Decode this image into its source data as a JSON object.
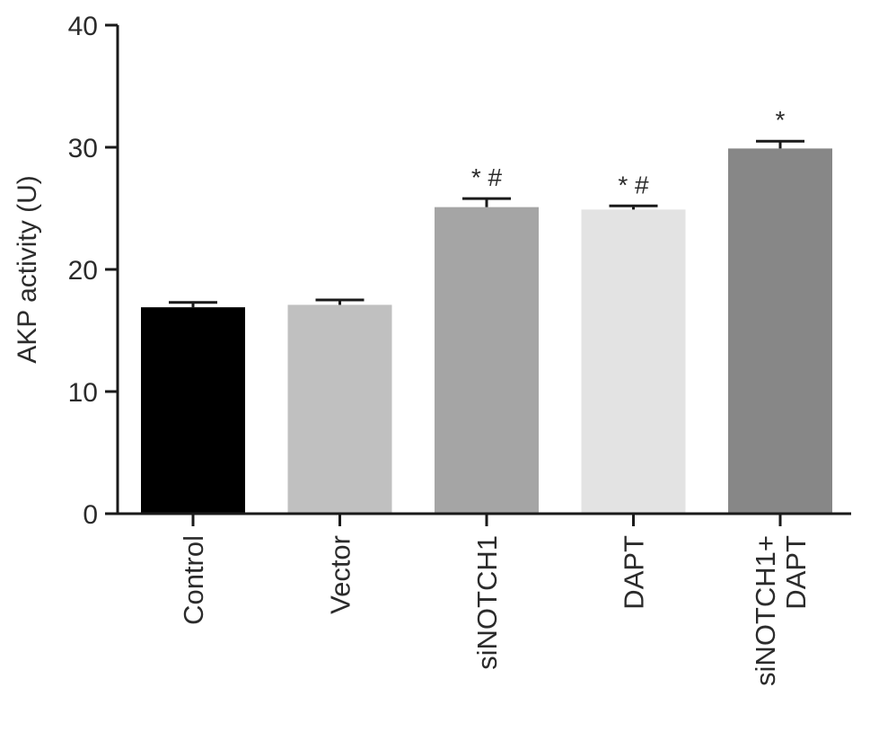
{
  "chart_data": {
    "type": "bar",
    "title": "",
    "xlabel": "",
    "ylabel": "AKP activity (U)",
    "ylim": [
      0,
      40
    ],
    "yticks": [
      "0",
      "10",
      "20",
      "30",
      "40"
    ],
    "grid": false,
    "legend": "none",
    "categories": [
      [
        "Control"
      ],
      [
        "Vector"
      ],
      [
        "siNOTCH1"
      ],
      [
        "DAPT"
      ],
      [
        "siNOTCH1+",
        "DAPT"
      ]
    ],
    "values": [
      16.9,
      17.1,
      25.1,
      24.9,
      29.9
    ],
    "errors": [
      0.4,
      0.4,
      0.7,
      0.3,
      0.6
    ],
    "annotations": [
      "",
      "",
      "* #",
      "* #",
      "*"
    ],
    "colors": [
      "#000000",
      "#c0c0c0",
      "#a5a5a5",
      "#e3e3e3",
      "#878787"
    ],
    "axis_color": "#1a1a1a"
  }
}
